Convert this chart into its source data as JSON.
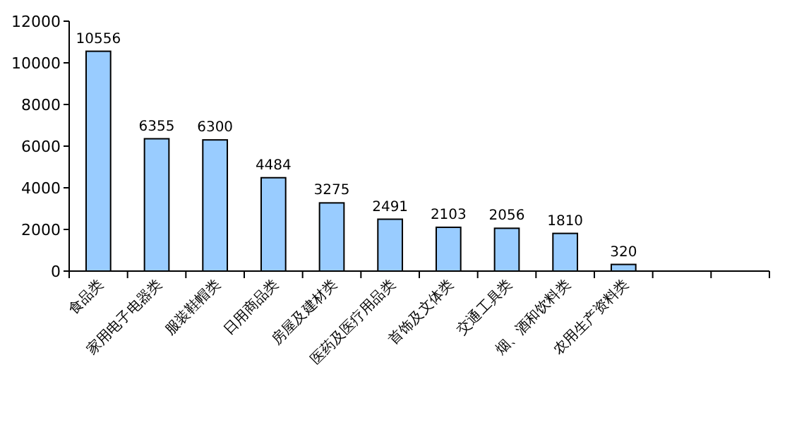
{
  "chart_data": {
    "type": "bar",
    "categories": [
      "食品类",
      "家用电子电器类",
      "服装鞋帽类",
      "日用商品类",
      "房屋及建材类",
      "医药及医疗用品类",
      "首饰及文体类",
      "交通工具类",
      "烟、酒和饮料类",
      "农用生产资料类",
      null,
      null
    ],
    "values": [
      10556,
      6355,
      6300,
      4484,
      3275,
      2491,
      2103,
      2056,
      1810,
      320,
      null,
      null
    ],
    "color": "#99ccff",
    "ylim": [
      0,
      12000
    ],
    "yticks": [
      0,
      2000,
      4000,
      6000,
      8000,
      10000,
      12000
    ],
    "data_labels": true,
    "grid": false
  }
}
